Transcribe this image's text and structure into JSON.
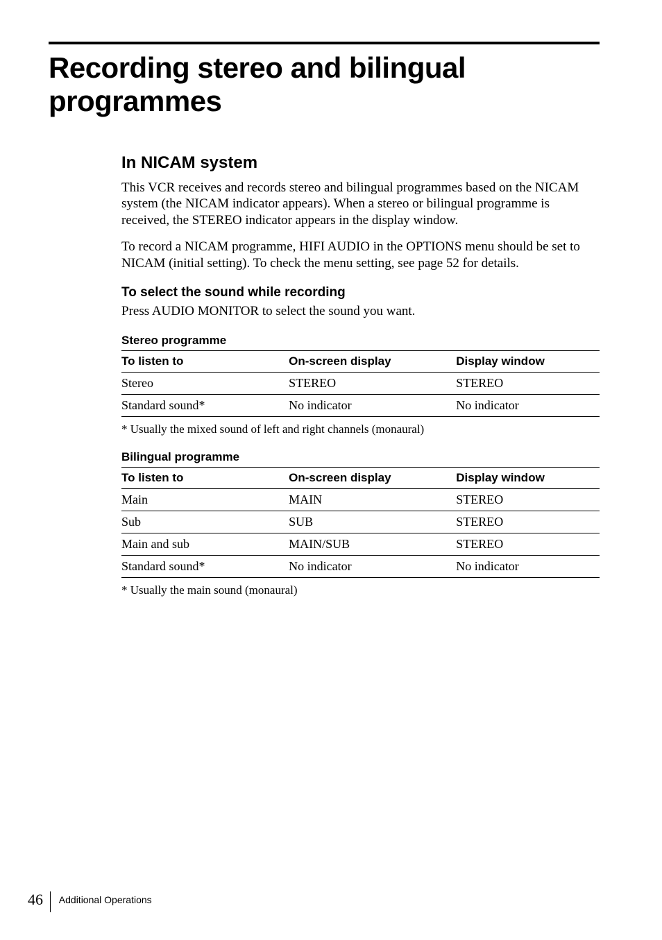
{
  "title": "Recording stereo and bilingual programmes",
  "section_heading": "In NICAM system",
  "para1": "This VCR receives and records stereo and bilingual programmes based on the NICAM system (the NICAM indicator appears). When a stereo or bilingual programme is received, the STEREO indicator appears in the display window.",
  "para2": "To record a NICAM programme, HIFI AUDIO in the OPTIONS menu should be set to NICAM (initial setting). To check the menu setting, see page 52 for details.",
  "sub_heading": "To select the sound while recording",
  "para3": "Press AUDIO MONITOR to select the sound you want.",
  "table1": {
    "title": "Stereo programme",
    "columns": [
      "To listen to",
      "On-screen display",
      "Display window"
    ],
    "rows": [
      [
        "Stereo",
        "STEREO",
        "STEREO"
      ],
      [
        "Standard sound*",
        "No indicator",
        "No indicator"
      ]
    ],
    "footnote": "* Usually the mixed sound of left and right channels (monaural)"
  },
  "table2": {
    "title": "Bilingual programme",
    "columns": [
      "To listen to",
      "On-screen display",
      "Display window"
    ],
    "rows": [
      [
        "Main",
        "MAIN",
        "STEREO"
      ],
      [
        "Sub",
        "SUB",
        "STEREO"
      ],
      [
        "Main and sub",
        "MAIN/SUB",
        "STEREO"
      ],
      [
        "Standard sound*",
        "No indicator",
        "No indicator"
      ]
    ],
    "footnote": "* Usually the main sound (monaural)"
  },
  "footer": {
    "page_number": "46",
    "section_label": "Additional Operations"
  },
  "colors": {
    "text": "#000000",
    "background": "#ffffff",
    "rule": "#000000"
  },
  "typography": {
    "title_fontsize": 42,
    "heading_fontsize": 24,
    "body_fontsize": 19,
    "table_header_fontsize": 17,
    "table_cell_fontsize": 18,
    "footnote_fontsize": 17
  }
}
